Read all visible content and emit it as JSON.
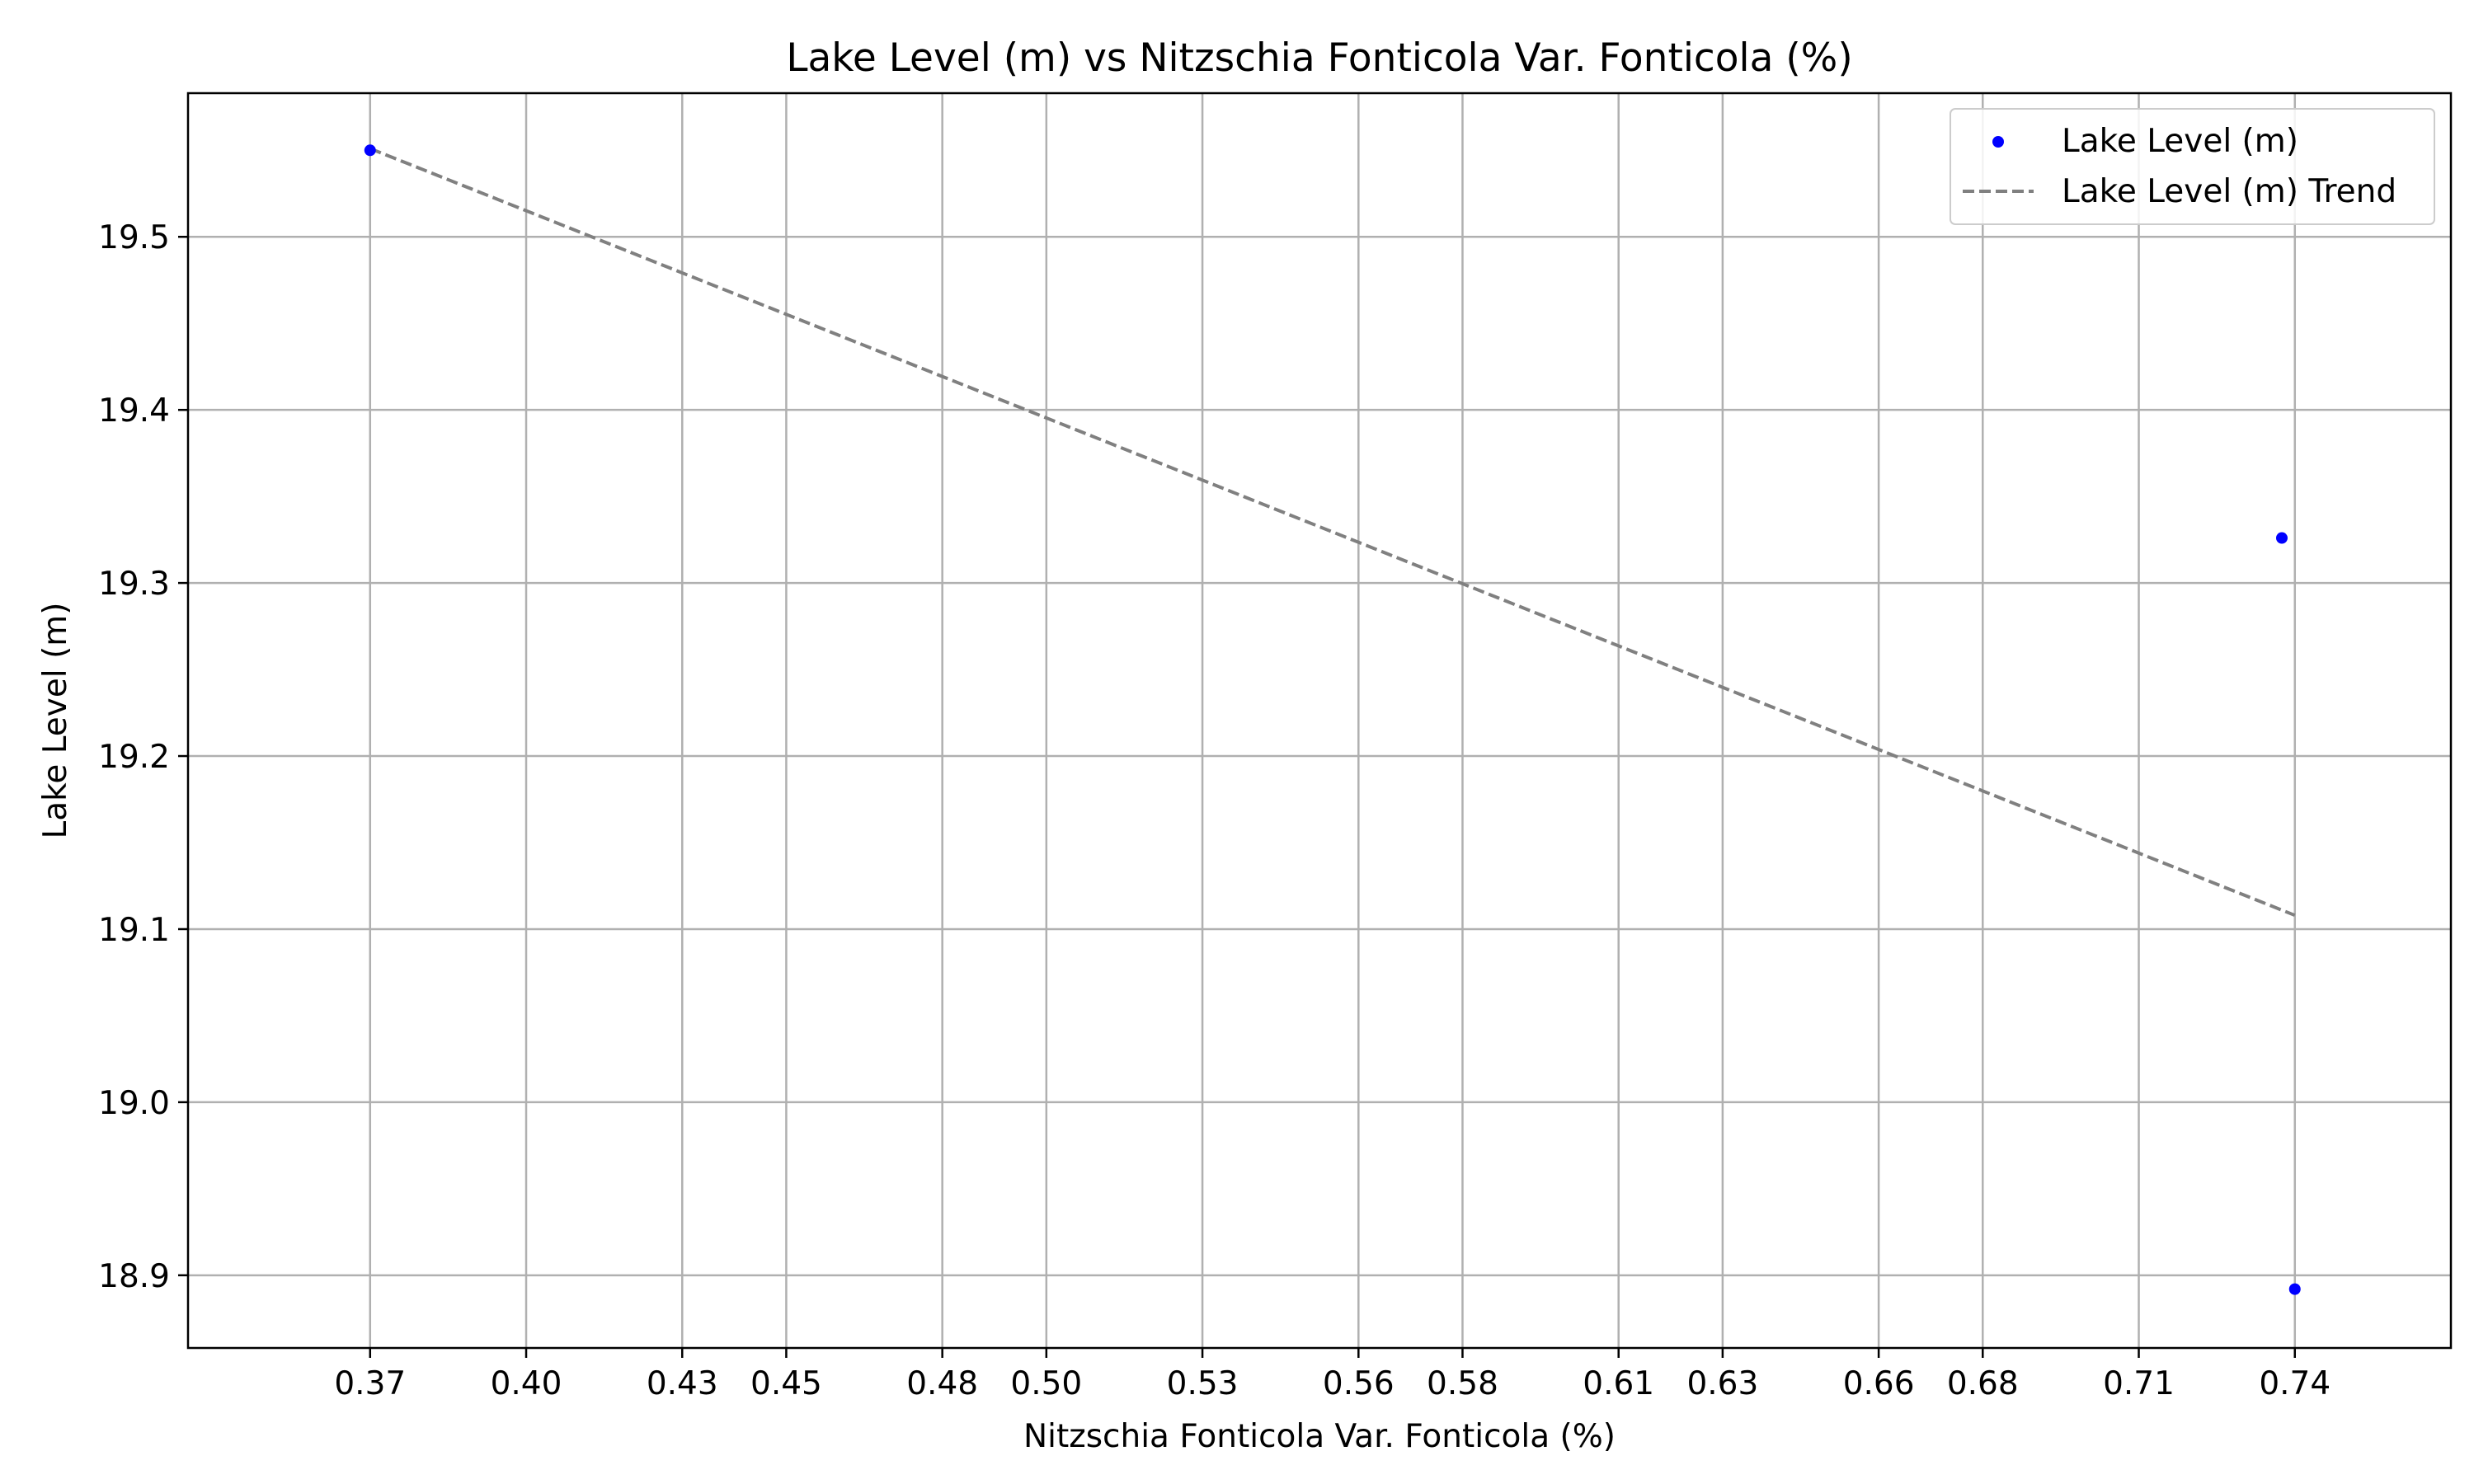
{
  "chart_data": {
    "type": "scatter",
    "title": "Lake Level (m) vs Nitzschia Fonticola Var. Fonticola (%)",
    "xlabel": "Nitzschia Fonticola Var. Fonticola (%)",
    "ylabel": "Lake Level (m)",
    "xlim": [
      0.335,
      0.77
    ],
    "ylim": [
      18.858,
      19.583
    ],
    "xticks": [
      0.37,
      0.4,
      0.43,
      0.45,
      0.48,
      0.5,
      0.53,
      0.56,
      0.58,
      0.61,
      0.63,
      0.66,
      0.68,
      0.71,
      0.74
    ],
    "xtick_labels": [
      "0.37",
      "0.40",
      "0.43",
      "0.45",
      "0.48",
      "0.50",
      "0.53",
      "0.56",
      "0.58",
      "0.61",
      "0.63",
      "0.66",
      "0.68",
      "0.71",
      "0.74"
    ],
    "yticks": [
      18.9,
      19.0,
      19.1,
      19.2,
      19.3,
      19.4,
      19.5
    ],
    "ytick_labels": [
      "18.9",
      "19.0",
      "19.1",
      "19.2",
      "19.3",
      "19.4",
      "19.5"
    ],
    "grid": true,
    "legend_position": "top-right",
    "series": [
      {
        "name": "Lake Level (m)",
        "kind": "scatter",
        "color": "#0000ff",
        "points": [
          {
            "x": 0.37,
            "y": 19.55
          },
          {
            "x": 0.7375,
            "y": 19.326
          },
          {
            "x": 0.74,
            "y": 18.892
          }
        ]
      },
      {
        "name": "Lake Level (m) Trend",
        "kind": "line",
        "style": "dashed",
        "color": "#808080",
        "points": [
          {
            "x": 0.37,
            "y": 19.551
          },
          {
            "x": 0.74,
            "y": 19.108
          }
        ]
      }
    ]
  }
}
